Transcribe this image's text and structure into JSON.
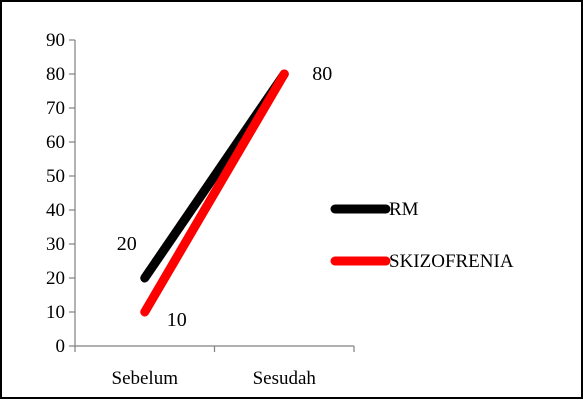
{
  "chart_data": {
    "type": "line",
    "title": "",
    "xlabel": "",
    "ylabel": "",
    "categories": [
      "Sebelum",
      "Sesudah"
    ],
    "ylim": [
      0,
      90
    ],
    "yticks": [
      0,
      10,
      20,
      30,
      40,
      50,
      60,
      70,
      80,
      90
    ],
    "grid": false,
    "legend_position": "right",
    "series": [
      {
        "name": "RM",
        "values": [
          20,
          80
        ],
        "color": "#000000"
      },
      {
        "name": "SKIZOFRENIA",
        "values": [
          10,
          80
        ],
        "color": "#ff0000"
      }
    ],
    "data_labels": [
      {
        "series": "RM",
        "category": "Sebelum",
        "text": "20"
      },
      {
        "series": "SKIZOFRENIA",
        "category": "Sebelum",
        "text": "10"
      },
      {
        "series": "RM",
        "category": "Sesudah",
        "text": "80"
      }
    ]
  }
}
